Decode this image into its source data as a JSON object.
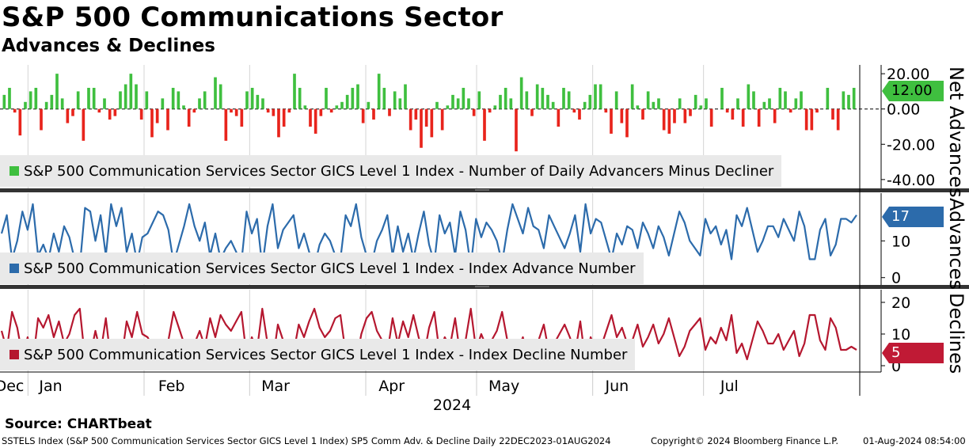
{
  "title": "S&P 500 Communications Sector",
  "subtitle": "Advances & Declines",
  "source": "Source: CHARTbeat",
  "footer": {
    "left": "SSTELS Index (S&P 500 Communication Services Sector GICS Level 1 Index) SP5 Comm Adv. & Decline  Daily 22DEC2023-01AUG2024",
    "center": "Copyright© 2024 Bloomberg Finance L.P.",
    "right": "01-Aug-2024 08:54:00"
  },
  "chart_data": [
    {
      "type": "bar",
      "title": "Net Advances",
      "ylabel": "Net Advances",
      "legend": "S&P 500 Communication Services Sector GICS Level 1 Index - Number of Daily Advancers Minus Decliner",
      "ylim": [
        -45,
        25
      ],
      "ticks": [
        "20.00",
        "0.00",
        "-20.00",
        "-40.00"
      ],
      "last_value": "12.00",
      "positive_color": "#3fbf3f",
      "negative_color": "#e8241c",
      "values": [
        8,
        12,
        -2,
        -15,
        4,
        10,
        12,
        -12,
        4,
        8,
        20,
        6,
        -8,
        -4,
        10,
        -18,
        12,
        12,
        -2,
        6,
        -6,
        -4,
        10,
        14,
        20,
        14,
        -6,
        10,
        -16,
        -8,
        6,
        -12,
        12,
        10,
        2,
        -10,
        -2,
        6,
        10,
        0,
        18,
        14,
        -18,
        -2,
        -4,
        -10,
        10,
        12,
        8,
        6,
        -2,
        -4,
        -16,
        -10,
        -2,
        20,
        12,
        2,
        -10,
        -14,
        -4,
        12,
        -2,
        2,
        4,
        8,
        12,
        14,
        -8,
        4,
        -6,
        20,
        12,
        -4,
        10,
        6,
        14,
        -12,
        -6,
        -22,
        -10,
        -16,
        4,
        -12,
        2,
        8,
        6,
        12,
        6,
        -4,
        10,
        -18,
        -2,
        2,
        8,
        12,
        6,
        -24,
        18,
        10,
        -4,
        14,
        12,
        8,
        4,
        -10,
        12,
        10,
        -2,
        -6,
        4,
        8,
        14,
        14,
        -2,
        -14,
        10,
        -8,
        -16,
        14,
        2,
        -6,
        10,
        4,
        6,
        -12,
        -14,
        -8,
        6,
        -8,
        -4,
        8,
        2,
        6,
        -10,
        0,
        12,
        -2,
        -6,
        6,
        -10,
        14,
        10,
        -10,
        4,
        6,
        -8,
        12,
        10,
        -2,
        6,
        10,
        -12,
        -12,
        -2,
        0,
        12,
        -6,
        -12,
        10,
        8,
        12
      ],
      "series": [
        {
          "name": "Net Advances",
          "color": "#3fbf3f"
        }
      ]
    },
    {
      "type": "line",
      "title": "Advances",
      "ylabel": "Advances",
      "legend": "S&P 500 Communication Services Sector GICS Level 1 Index - Index Advance Number",
      "ylim": [
        -2,
        23
      ],
      "ticks": [
        "10",
        "0"
      ],
      "last_value": "17",
      "color": "#2c6bab",
      "light_color": "#9bb8d6",
      "series": [
        {
          "name": "Advances",
          "values": [
            12,
            17,
            5,
            10,
            18,
            13,
            20,
            6,
            9,
            5,
            12,
            7,
            14,
            11,
            5,
            3,
            19,
            18,
            10,
            17,
            6,
            20,
            14,
            19,
            7,
            12,
            4,
            11,
            12,
            15,
            18,
            17,
            13,
            4,
            9,
            14,
            20,
            14,
            10,
            15,
            6,
            12,
            5,
            8,
            10,
            7,
            4,
            18,
            12,
            16,
            3,
            14,
            20,
            8,
            13,
            15,
            17,
            8,
            12,
            7,
            3,
            9,
            12,
            10,
            6,
            5,
            17,
            14,
            20,
            11,
            6,
            4,
            10,
            13,
            17,
            6,
            14,
            7,
            12,
            5,
            12,
            18,
            9,
            4,
            17,
            12,
            15,
            6,
            18,
            13,
            3,
            16,
            11,
            15,
            13,
            10,
            4,
            13,
            20,
            16,
            12,
            19,
            14,
            13,
            8,
            17,
            14,
            11,
            8,
            12,
            17,
            7,
            20,
            12,
            16,
            15,
            10,
            5,
            12,
            9,
            14,
            13,
            8,
            15,
            12,
            8,
            14,
            11,
            6,
            12,
            18,
            15,
            10,
            8,
            6,
            16,
            12,
            14,
            9,
            13,
            5,
            17,
            14,
            19,
            13,
            7,
            10,
            14,
            14,
            11,
            16,
            13,
            10,
            18,
            14,
            5,
            5,
            13,
            16,
            6,
            9,
            16,
            16,
            15,
            17
          ]
        }
      ]
    },
    {
      "type": "line",
      "title": "Declines",
      "ylabel": "Declines",
      "legend": "S&P 500 Communication Services Sector GICS Level 1 Index - Index Decline Number",
      "ylim": [
        -2,
        24
      ],
      "ticks": [
        "20",
        "10",
        "0"
      ],
      "last_value": "5",
      "color": "#b5172f",
      "light_color": "#e39aa6",
      "series": [
        {
          "name": "Declines",
          "values": [
            11,
            5,
            17,
            12,
            3,
            9,
            1,
            15,
            12,
            16,
            9,
            14,
            7,
            10,
            16,
            18,
            2,
            3,
            11,
            4,
            15,
            1,
            7,
            2,
            14,
            9,
            17,
            10,
            9,
            6,
            3,
            4,
            8,
            17,
            12,
            7,
            1,
            7,
            11,
            6,
            15,
            9,
            16,
            13,
            11,
            14,
            17,
            3,
            9,
            5,
            18,
            7,
            1,
            13,
            8,
            6,
            4,
            13,
            9,
            14,
            18,
            12,
            9,
            11,
            15,
            16,
            4,
            7,
            1,
            10,
            15,
            17,
            11,
            8,
            4,
            15,
            7,
            14,
            9,
            16,
            9,
            3,
            12,
            17,
            4,
            9,
            6,
            15,
            3,
            8,
            18,
            5,
            10,
            6,
            8,
            11,
            17,
            8,
            1,
            5,
            9,
            2,
            7,
            8,
            13,
            4,
            7,
            10,
            13,
            9,
            4,
            14,
            1,
            9,
            5,
            6,
            11,
            16,
            9,
            12,
            7,
            8,
            13,
            6,
            9,
            13,
            7,
            10,
            15,
            9,
            3,
            6,
            11,
            13,
            15,
            5,
            9,
            7,
            12,
            8,
            16,
            4,
            7,
            2,
            8,
            14,
            11,
            7,
            7,
            10,
            5,
            8,
            11,
            3,
            7,
            16,
            16,
            8,
            5,
            15,
            12,
            5,
            5,
            6,
            5
          ]
        }
      ]
    }
  ],
  "x_axis": {
    "months": [
      "Dec",
      "Jan",
      "Feb",
      "Mar",
      "Apr",
      "May",
      "Jun",
      "Jul"
    ],
    "year": "2024"
  }
}
